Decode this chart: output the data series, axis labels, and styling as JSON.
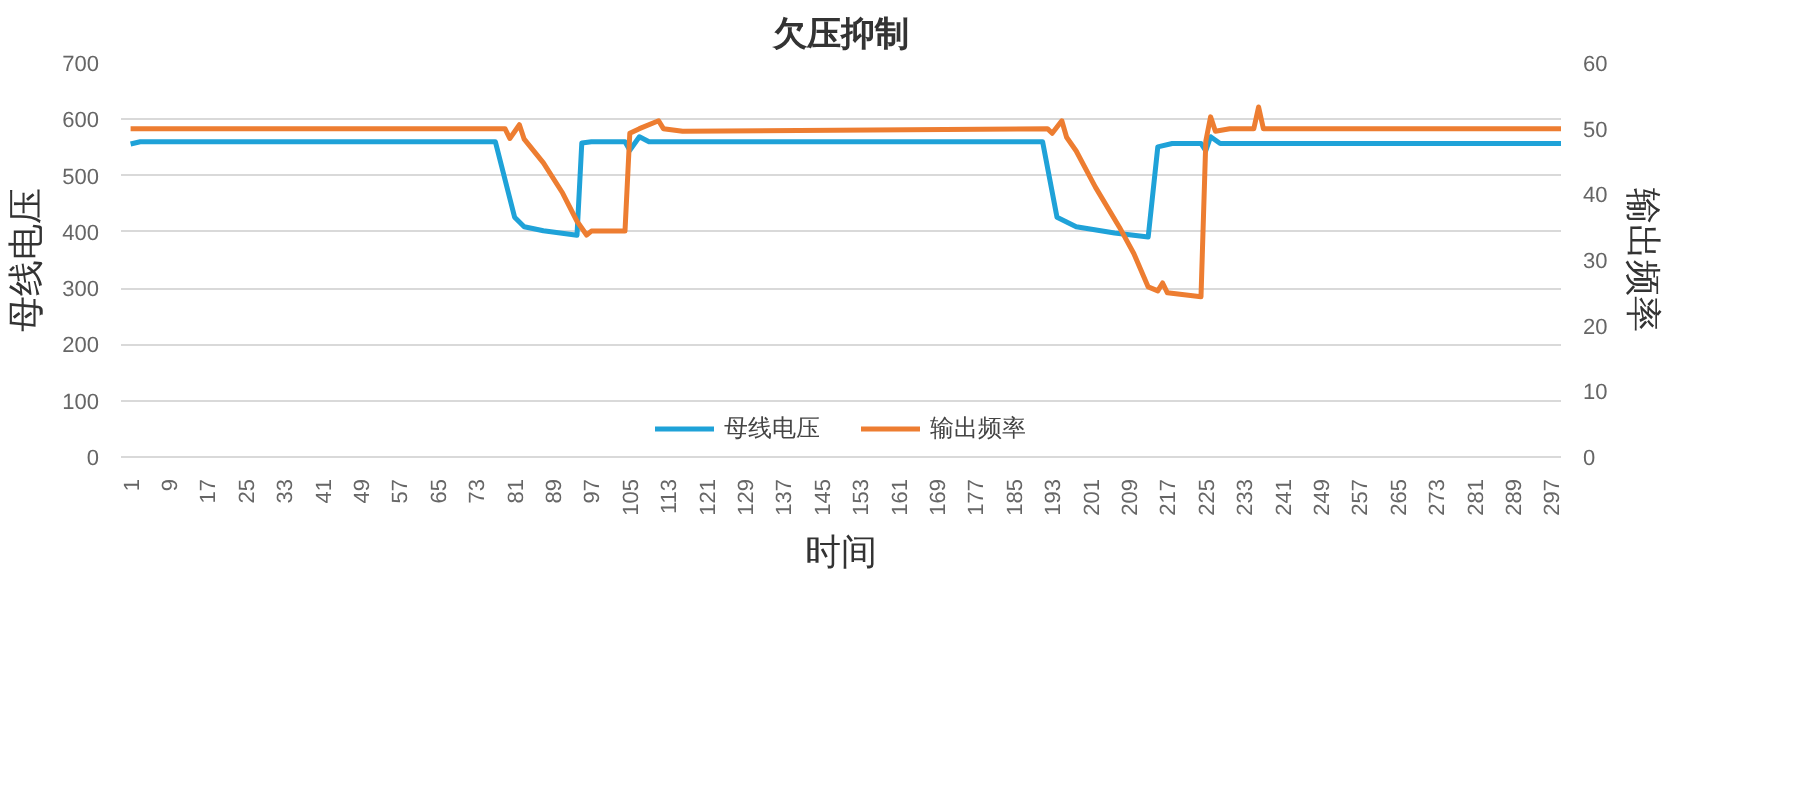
{
  "chart_data": {
    "type": "line",
    "title": "欠压抑制",
    "xlabel": "时间",
    "ylabel": "母线电压",
    "y2label": "输出频率",
    "xlim": [
      -1,
      299
    ],
    "xticks": [
      1,
      9,
      17,
      25,
      33,
      41,
      49,
      57,
      65,
      73,
      81,
      89,
      97,
      105,
      113,
      121,
      129,
      137,
      145,
      153,
      161,
      169,
      177,
      185,
      193,
      201,
      209,
      217,
      225,
      233,
      241,
      249,
      257,
      265,
      273,
      281,
      289,
      297
    ],
    "ylim": [
      0,
      700
    ],
    "yticks": [
      0,
      100,
      200,
      300,
      400,
      500,
      600,
      700
    ],
    "y2lim": [
      0,
      60
    ],
    "y2ticks": [
      0,
      10,
      20,
      30,
      40,
      50,
      60
    ],
    "grid": "y",
    "legend": "bottom",
    "marker": "none",
    "line_style": "solid",
    "series": [
      {
        "name": "母线电压",
        "color": "#1fa2d8",
        "x": [
          1,
          3,
          77,
          81,
          83,
          87,
          94,
          95,
          97,
          104,
          105,
          107,
          109,
          191,
          194,
          198,
          206,
          213,
          215,
          218,
          224,
          225,
          226,
          228,
          299
        ],
        "values": [
          556,
          560,
          560,
          426,
          409,
          402,
          394,
          558,
          560,
          560,
          545,
          569,
          560,
          560,
          426,
          409,
          398,
          391,
          551,
          557,
          557,
          544,
          569,
          557,
          557
        ]
      },
      {
        "name": "输出频率",
        "color": "#ed7d31",
        "axis": "y2",
        "x": [
          1,
          79,
          80,
          82,
          83,
          87,
          91,
          94,
          96,
          97,
          104,
          105,
          107,
          111,
          112,
          116,
          192,
          193,
          195,
          196,
          198,
          202,
          207,
          210,
          213,
          215,
          216,
          217,
          224,
          225,
          226,
          227,
          230,
          235,
          236,
          237,
          299
        ],
        "values": [
          50,
          50,
          48.5,
          50.6,
          48.4,
          44.8,
          40.2,
          35.9,
          33.8,
          34.4,
          34.4,
          49.3,
          50,
          51.2,
          50,
          49.6,
          50,
          49.3,
          51.2,
          48.7,
          46.6,
          41.1,
          35,
          31,
          25.9,
          25.3,
          26.5,
          25,
          24.4,
          48.1,
          51.8,
          49.6,
          50,
          50,
          53.3,
          50,
          50
        ]
      }
    ]
  }
}
